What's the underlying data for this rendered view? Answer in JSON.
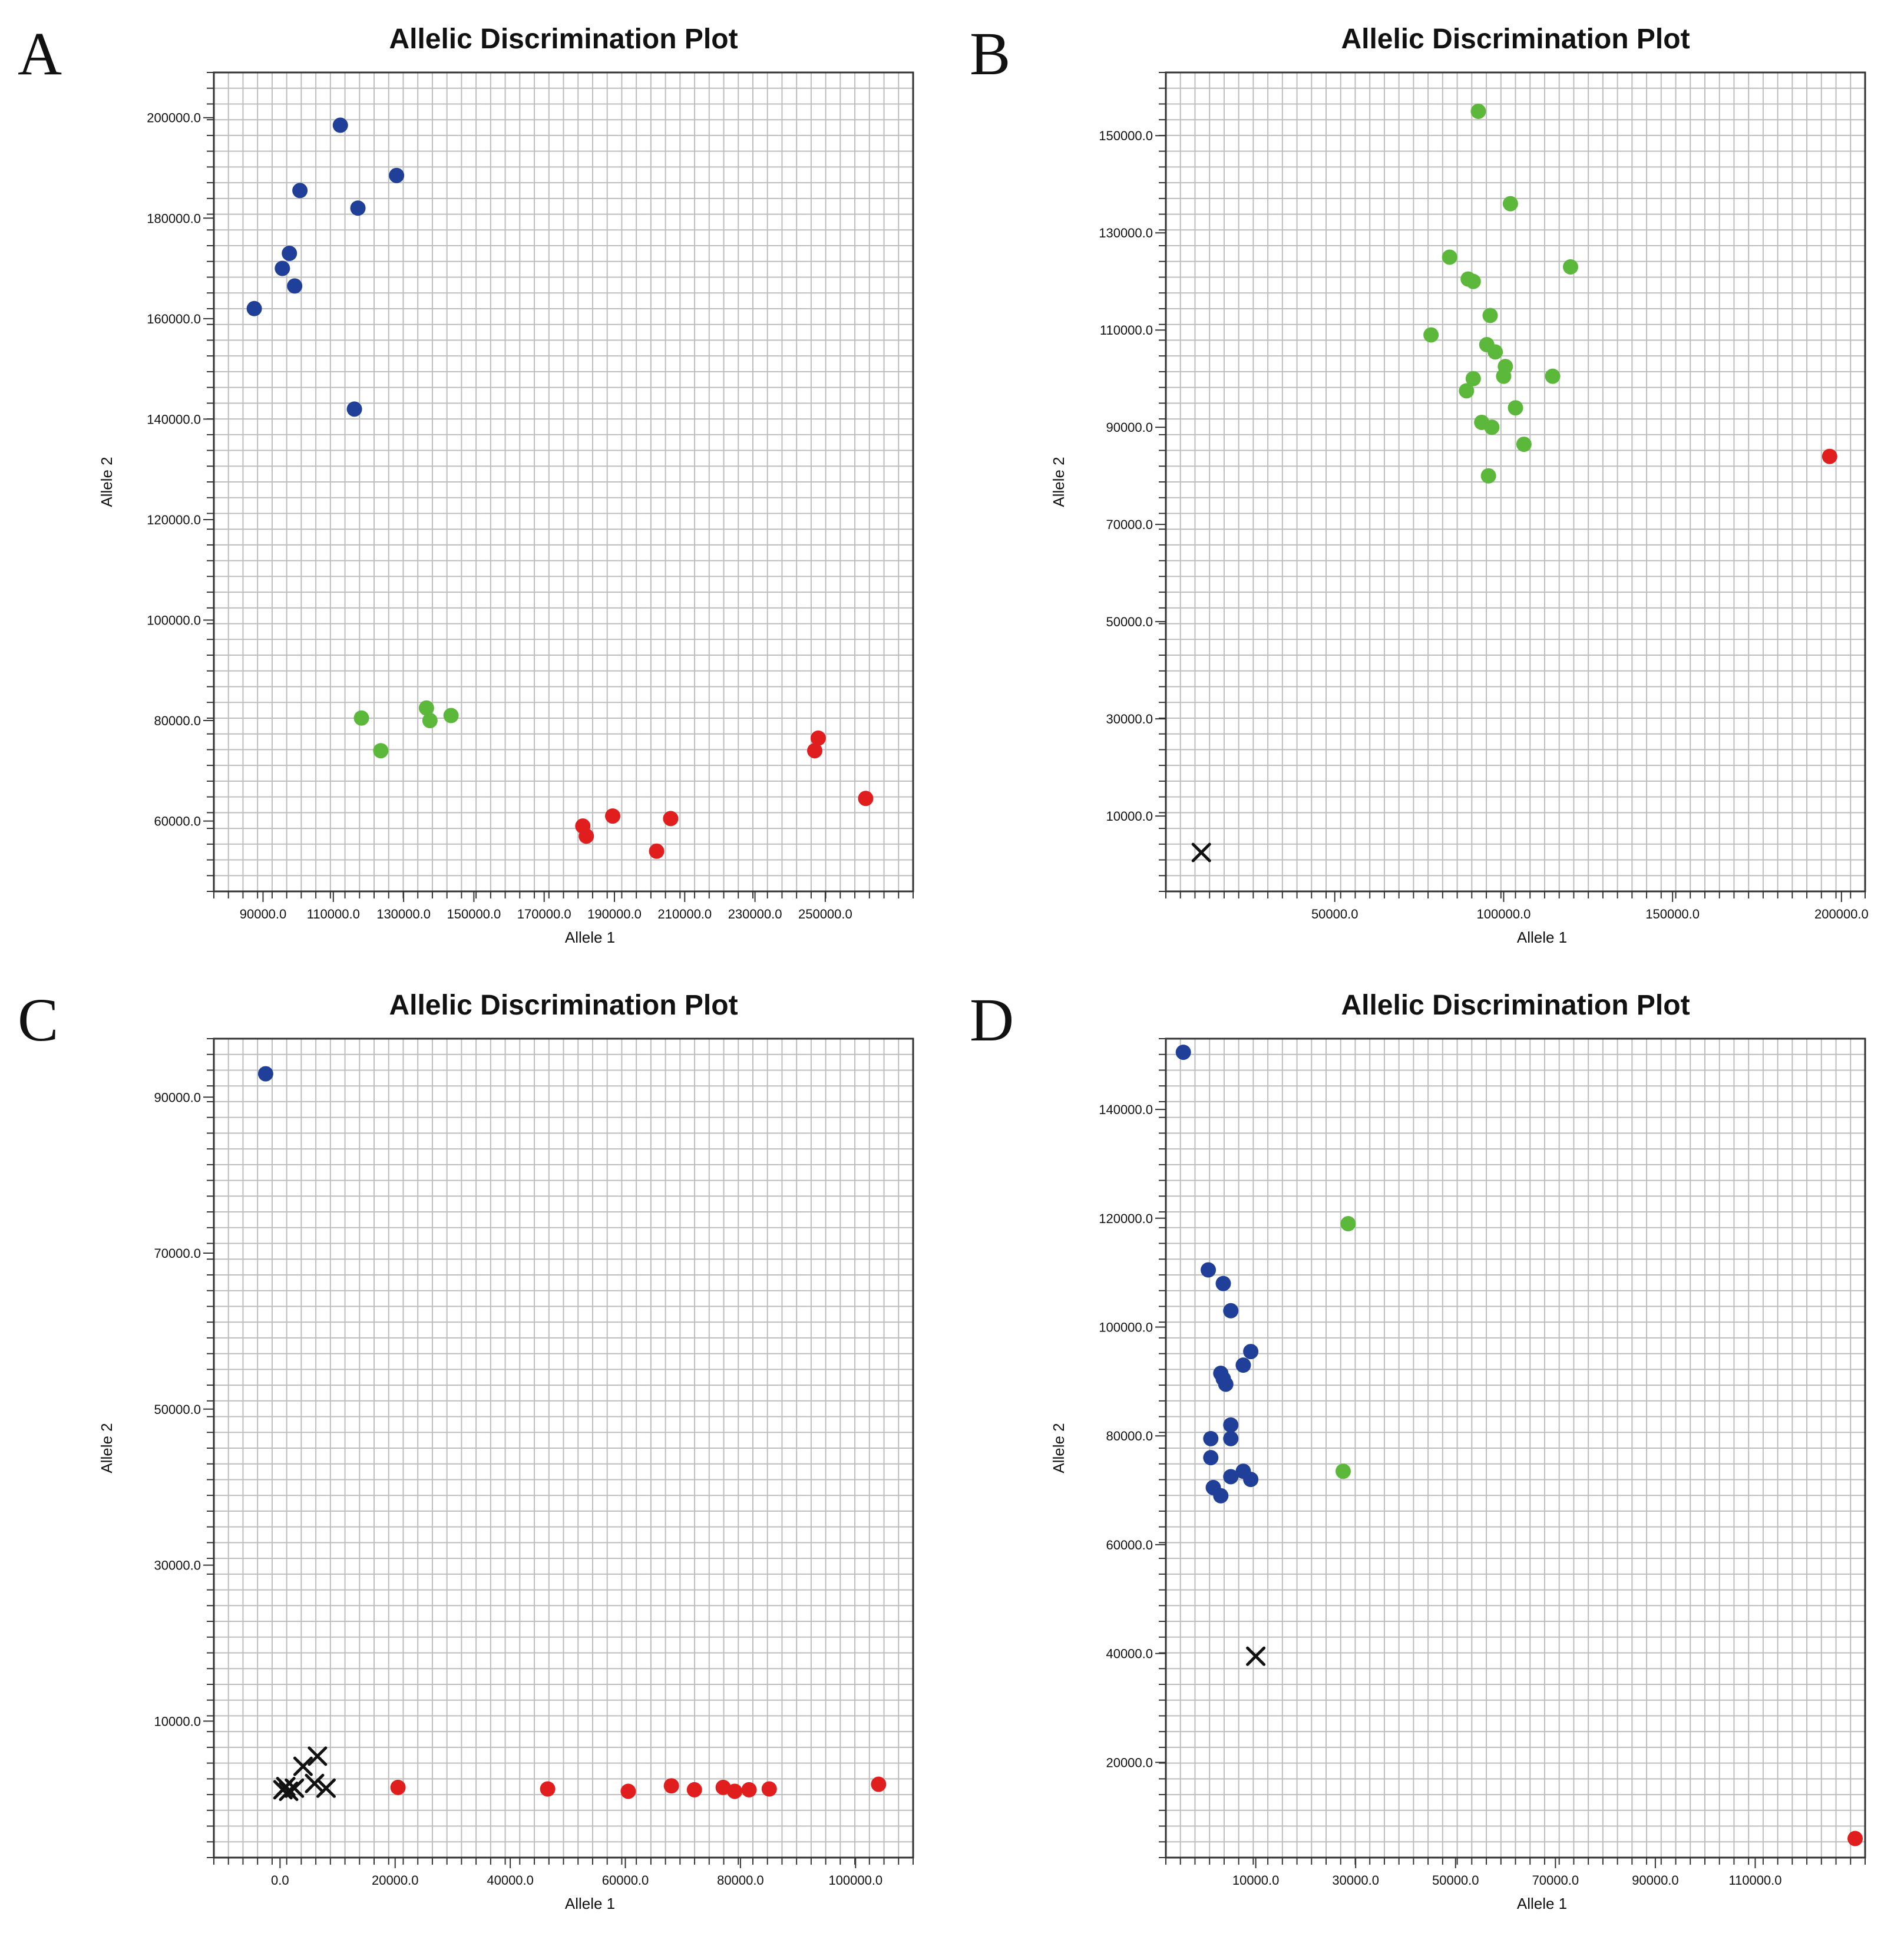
{
  "colors": {
    "blue": "#1f3f98",
    "green": "#5cb83a",
    "red": "#e01e1e",
    "undetermined": "#111111",
    "grid": "#bdbdbd"
  },
  "panels": [
    {
      "label": "A"
    },
    {
      "label": "B"
    },
    {
      "label": "C"
    },
    {
      "label": "D"
    }
  ],
  "chart_data": [
    {
      "type": "scatter",
      "title": "Allelic Discrimination Plot",
      "xlabel": "Allele 1",
      "ylabel": "Allele 2",
      "xlim": [
        76000,
        275000
      ],
      "ylim": [
        46000,
        209000
      ],
      "xticks": [
        90000,
        110000,
        130000,
        150000,
        170000,
        190000,
        210000,
        230000,
        250000
      ],
      "xtick_labels": [
        "90000.0",
        "110000.0",
        "130000.0",
        "150000.0",
        "170000.0",
        "190000.0",
        "210000.0",
        "230000.0",
        "250000.0"
      ],
      "yticks": [
        60000,
        80000,
        100000,
        120000,
        140000,
        160000,
        180000,
        200000
      ],
      "ytick_labels": [
        "60000.0",
        "80000.0",
        "100000.0",
        "120000.0",
        "140000.0",
        "160000.0",
        "180000.0",
        "200000.0"
      ],
      "series": [
        {
          "name": "blue",
          "marker": "dot",
          "points": [
            [
              87500,
              162000
            ],
            [
              95500,
              170000
            ],
            [
              97500,
              173000
            ],
            [
              99000,
              166500
            ],
            [
              100500,
              185500
            ],
            [
              112000,
              198500
            ],
            [
              117000,
              182000
            ],
            [
              128000,
              188500
            ],
            [
              116000,
              142000
            ]
          ]
        },
        {
          "name": "green",
          "marker": "dot",
          "points": [
            [
              118000,
              80500
            ],
            [
              123500,
              74000
            ],
            [
              136500,
              82500
            ],
            [
              137500,
              80000
            ],
            [
              143500,
              81000
            ]
          ]
        },
        {
          "name": "red",
          "marker": "dot",
          "points": [
            [
              181000,
              59000
            ],
            [
              182000,
              57000
            ],
            [
              189500,
              61000
            ],
            [
              202000,
              54000
            ],
            [
              206000,
              60500
            ],
            [
              247000,
              74000
            ],
            [
              248000,
              76500
            ],
            [
              261500,
              64500
            ]
          ]
        },
        {
          "name": "undetermined",
          "marker": "x",
          "points": []
        }
      ]
    },
    {
      "type": "scatter",
      "title": "Allelic Discrimination Plot",
      "xlabel": "Allele 1",
      "ylabel": "Allele 2",
      "xlim": [
        0,
        207000
      ],
      "ylim": [
        -5500,
        163000
      ],
      "xticks": [
        50000,
        100000,
        150000,
        200000
      ],
      "xtick_labels": [
        "50000.0",
        "100000.0",
        "150000.0",
        "200000.0"
      ],
      "yticks": [
        10000,
        30000,
        50000,
        70000,
        90000,
        110000,
        130000,
        150000
      ],
      "ytick_labels": [
        "10000.0",
        "30000.0",
        "50000.0",
        "70000.0",
        "90000.0",
        "110000.0",
        "130000.0",
        "150000.0"
      ],
      "series": [
        {
          "name": "blue",
          "marker": "dot",
          "points": []
        },
        {
          "name": "green",
          "marker": "dot",
          "points": [
            [
              92500,
              155000
            ],
            [
              102000,
              136000
            ],
            [
              119800,
              123000
            ],
            [
              84000,
              125000
            ],
            [
              89500,
              120500
            ],
            [
              91000,
              120000
            ],
            [
              96000,
              113000
            ],
            [
              78500,
              109000
            ],
            [
              95000,
              107000
            ],
            [
              97500,
              105500
            ],
            [
              100500,
              102500
            ],
            [
              100000,
              100500
            ],
            [
              91000,
              100000
            ],
            [
              114500,
              100500
            ],
            [
              89000,
              97500
            ],
            [
              103500,
              94000
            ],
            [
              93500,
              91000
            ],
            [
              96500,
              90000
            ],
            [
              106000,
              86500
            ],
            [
              95500,
              80000
            ]
          ]
        },
        {
          "name": "red",
          "marker": "dot",
          "points": [
            [
              196500,
              84000
            ]
          ]
        },
        {
          "name": "undetermined",
          "marker": "x",
          "points": [
            [
              10500,
              2500
            ]
          ]
        }
      ]
    },
    {
      "type": "scatter",
      "title": "Allelic Discrimination Plot",
      "xlabel": "Allele 1",
      "ylabel": "Allele 2",
      "xlim": [
        -11500,
        110000
      ],
      "ylim": [
        -7500,
        97500
      ],
      "xticks": [
        0,
        20000,
        40000,
        60000,
        80000,
        100000
      ],
      "xtick_labels": [
        "0.0",
        "20000.0",
        "40000.0",
        "60000.0",
        "80000.0",
        "100000.0"
      ],
      "yticks": [
        10000,
        30000,
        50000,
        70000,
        90000
      ],
      "ytick_labels": [
        "10000.0",
        "30000.0",
        "50000.0",
        "70000.0",
        "90000.0"
      ],
      "series": [
        {
          "name": "blue",
          "marker": "dot",
          "points": [
            [
              -2500,
              93000
            ]
          ]
        },
        {
          "name": "green",
          "marker": "dot",
          "points": []
        },
        {
          "name": "red",
          "marker": "dot",
          "points": [
            [
              20500,
              1500
            ],
            [
              46500,
              1300
            ],
            [
              60500,
              1000
            ],
            [
              68000,
              1700
            ],
            [
              72000,
              1200
            ],
            [
              77000,
              1500
            ],
            [
              79000,
              1000
            ],
            [
              81500,
              1200
            ],
            [
              85000,
              1300
            ],
            [
              104000,
              1900
            ]
          ]
        },
        {
          "name": "undetermined",
          "marker": "x",
          "points": [
            [
              500,
              1200
            ],
            [
              1000,
              1600
            ],
            [
              1500,
              1000
            ],
            [
              2500,
              1400
            ],
            [
              4000,
              4200
            ],
            [
              6000,
              2000
            ],
            [
              6500,
              5500
            ],
            [
              8000,
              1400
            ]
          ]
        }
      ]
    },
    {
      "type": "scatter",
      "title": "Allelic Discrimination Plot",
      "xlabel": "Allele 1",
      "ylabel": "Allele 2",
      "xlim": [
        -8000,
        132000
      ],
      "ylim": [
        2500,
        153000
      ],
      "xticks": [
        10000,
        30000,
        50000,
        70000,
        90000,
        110000
      ],
      "xtick_labels": [
        "10000.0",
        "30000.0",
        "50000.0",
        "70000.0",
        "90000.0",
        "110000.0"
      ],
      "yticks": [
        20000,
        40000,
        60000,
        80000,
        100000,
        120000,
        140000
      ],
      "ytick_labels": [
        "20000.0",
        "40000.0",
        "60000.0",
        "80000.0",
        "100000.0",
        "120000.0",
        "140000.0"
      ],
      "series": [
        {
          "name": "blue",
          "marker": "dot",
          "points": [
            [
              -4500,
              150500
            ],
            [
              500,
              110500
            ],
            [
              3500,
              108000
            ],
            [
              5000,
              103000
            ],
            [
              9000,
              95500
            ],
            [
              7500,
              93000
            ],
            [
              3000,
              91500
            ],
            [
              3500,
              90500
            ],
            [
              4000,
              89500
            ],
            [
              5000,
              82000
            ],
            [
              1000,
              79500
            ],
            [
              5000,
              79500
            ],
            [
              1000,
              76000
            ],
            [
              7500,
              73500
            ],
            [
              5000,
              72500
            ],
            [
              9000,
              72000
            ],
            [
              1500,
              70500
            ],
            [
              3000,
              69000
            ]
          ]
        },
        {
          "name": "green",
          "marker": "dot",
          "points": [
            [
              28500,
              119000
            ],
            [
              27500,
              73500
            ]
          ]
        },
        {
          "name": "red",
          "marker": "dot",
          "points": [
            [
              130000,
              6000
            ]
          ]
        },
        {
          "name": "undetermined",
          "marker": "x",
          "points": [
            [
              10000,
              39500
            ]
          ]
        }
      ]
    }
  ]
}
